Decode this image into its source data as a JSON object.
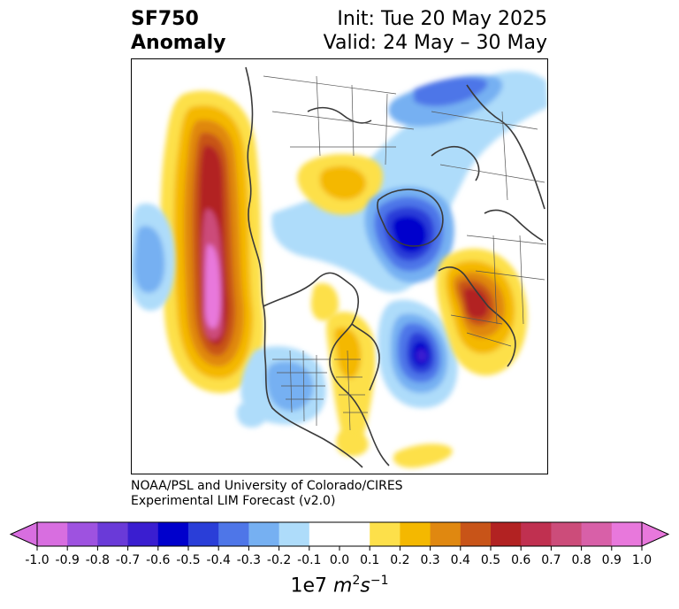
{
  "header": {
    "field": "SF750",
    "type": "Anomaly",
    "init": "Init: Tue 20 May 2025",
    "valid": "Valid: 24 May – 30 May"
  },
  "credit": {
    "line1": "NOAA/PSL and University of Colorado/CIRES",
    "line2": "Experimental LIM Forecast (v2.0)"
  },
  "colorbar": {
    "ticks": [
      "-1.0",
      "-0.9",
      "-0.8",
      "-0.7",
      "-0.6",
      "-0.5",
      "-0.4",
      "-0.3",
      "-0.2",
      "-0.1",
      "0.0",
      "0.1",
      "0.2",
      "0.3",
      "0.4",
      "0.5",
      "0.6",
      "0.7",
      "0.8",
      "0.9",
      "1.0"
    ],
    "under_color": "#d86ee0",
    "over_color": "#e878dc",
    "colors": [
      "#d86ee0",
      "#9e52e0",
      "#6a3ad8",
      "#3a1ed0",
      "#0000cc",
      "#2a3ed8",
      "#4e76e8",
      "#76b0f2",
      "#aedcfa",
      "#ffffff",
      "#ffffff",
      "#fde04a",
      "#f4b800",
      "#e08810",
      "#c85418",
      "#b22222",
      "#c03050",
      "#cc4c7a",
      "#d860a8",
      "#e878dc"
    ],
    "units_prefix": "1e7 ",
    "units_m": "m",
    "units_m_exp": "2",
    "units_s": "s",
    "units_s_exp": "−1"
  }
}
